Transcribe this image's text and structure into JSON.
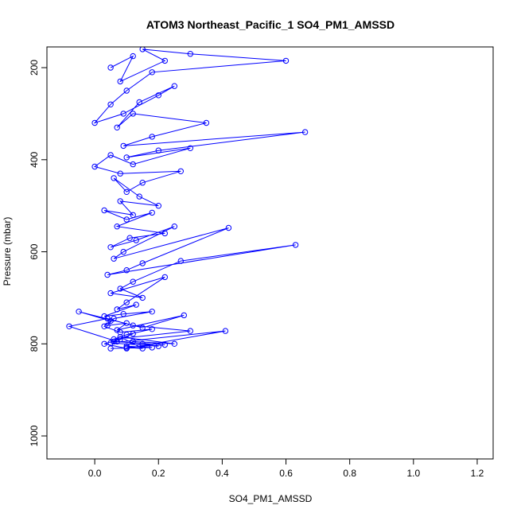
{
  "chart_data": {
    "type": "scatter",
    "title": "ATOM3 Northeast_Pacific_1 SO4_PM1_AMSSD",
    "xlabel": "SO4_PM1_AMSSD",
    "ylabel": "Pressure (mbar)",
    "xlim": [
      -0.15,
      1.25
    ],
    "ylim": [
      1050,
      155
    ],
    "y_reversed": true,
    "x_ticks": [
      "0.0",
      "0.2",
      "0.4",
      "0.6",
      "0.8",
      "1.0",
      "1.2"
    ],
    "x_tick_values": [
      0.0,
      0.2,
      0.4,
      0.6,
      0.8,
      1.0,
      1.2
    ],
    "y_ticks": [
      "200",
      "400",
      "600",
      "800",
      "1000"
    ],
    "y_tick_values": [
      200,
      400,
      600,
      800,
      1000
    ],
    "grid": false,
    "legend": "none",
    "color": "#0000ff",
    "marker": "open-circle",
    "connected": true,
    "series": [
      {
        "x": [
          0.05,
          0.12,
          0.08,
          0.22,
          0.15,
          0.3,
          0.6,
          0.18,
          0.1,
          0.05,
          0.0,
          0.09,
          0.2,
          0.25,
          0.14,
          0.07,
          0.12,
          0.35,
          0.18,
          0.09,
          0.66,
          0.2,
          0.1,
          0.3,
          0.12,
          0.05,
          0.0,
          0.08,
          0.27,
          0.15,
          0.1,
          0.06,
          0.14,
          0.2,
          0.08,
          0.12,
          0.03,
          0.1,
          0.18,
          0.07,
          0.22,
          0.11,
          0.05,
          0.13,
          0.25,
          0.09,
          0.06,
          0.42,
          0.15,
          0.1,
          0.04,
          0.63,
          0.27,
          0.12,
          0.08,
          0.15,
          0.05,
          0.22,
          0.1,
          0.07,
          0.13,
          0.03,
          0.09,
          0.18,
          0.06,
          0.04,
          0.1,
          0.07,
          0.28,
          0.15,
          -0.05,
          0.05,
          0.03,
          0.08,
          0.18,
          0.1,
          0.06,
          0.3,
          0.12,
          0.04,
          -0.08,
          0.07,
          0.15,
          0.2,
          0.05,
          0.41,
          0.1,
          0.03,
          0.08,
          0.12,
          0.06,
          0.22,
          0.1,
          0.15,
          0.08,
          0.25,
          0.12,
          0.1,
          0.18,
          0.05
        ],
        "y": [
          200,
          175,
          230,
          185,
          160,
          170,
          185,
          210,
          250,
          280,
          320,
          300,
          260,
          240,
          275,
          330,
          300,
          320,
          350,
          370,
          340,
          380,
          395,
          375,
          410,
          390,
          415,
          430,
          425,
          450,
          470,
          440,
          480,
          500,
          490,
          520,
          510,
          530,
          515,
          545,
          560,
          570,
          590,
          575,
          545,
          600,
          615,
          548,
          625,
          640,
          650,
          585,
          620,
          665,
          680,
          700,
          690,
          655,
          710,
          725,
          715,
          740,
          735,
          730,
          745,
          760,
          755,
          770,
          738,
          765,
          730,
          750,
          762,
          775,
          768,
          780,
          790,
          772,
          760,
          745,
          762,
          795,
          800,
          805,
          798,
          772,
          810,
          800,
          790,
          778,
          795,
          802,
          808,
          810,
          785,
          800,
          795,
          805,
          808,
          810
        ]
      }
    ]
  }
}
